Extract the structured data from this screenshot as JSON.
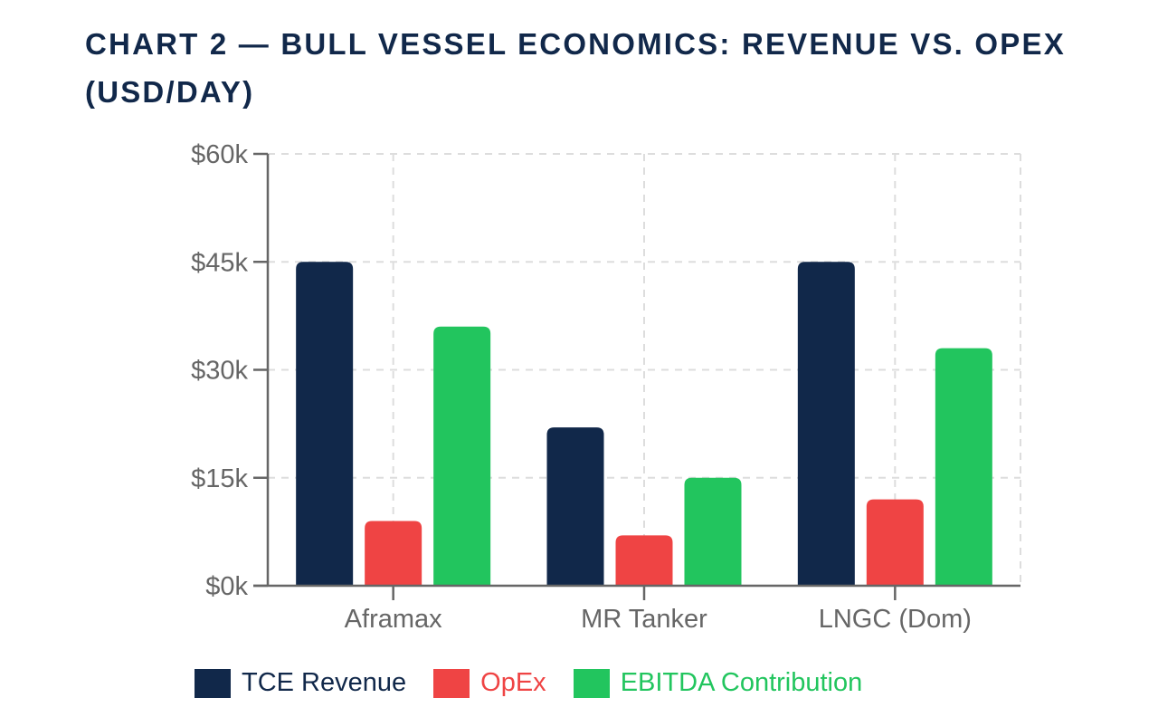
{
  "title": "CHART 2 — BULL VESSEL ECONOMICS: REVENUE VS. OPEX (USD/DAY)",
  "chart_data": {
    "type": "bar",
    "title": "CHART 2 — BULL VESSEL ECONOMICS: REVENUE VS. OPEX (USD/DAY)",
    "xlabel": "",
    "ylabel": "",
    "categories": [
      "Aframax",
      "MR Tanker",
      "LNGC (Dom)"
    ],
    "series": [
      {
        "name": "TCE Revenue",
        "color": "#11284a",
        "values": [
          45000,
          22000,
          45000
        ]
      },
      {
        "name": "OpEx",
        "color": "#ef4444",
        "values": [
          9000,
          7000,
          12000
        ]
      },
      {
        "name": "EBITDA Contribution",
        "color": "#22c55e",
        "values": [
          36000,
          15000,
          33000
        ]
      }
    ],
    "ylim": [
      0,
      60000
    ],
    "yticks": [
      0,
      15000,
      30000,
      45000,
      60000
    ],
    "ytick_labels": [
      "$0k",
      "$15k",
      "$30k",
      "$45k",
      "$60k"
    ],
    "grid": true,
    "legend_position": "bottom"
  },
  "colors": {
    "title": "#11284a",
    "axis": "#666666",
    "grid": "#dddddd"
  }
}
